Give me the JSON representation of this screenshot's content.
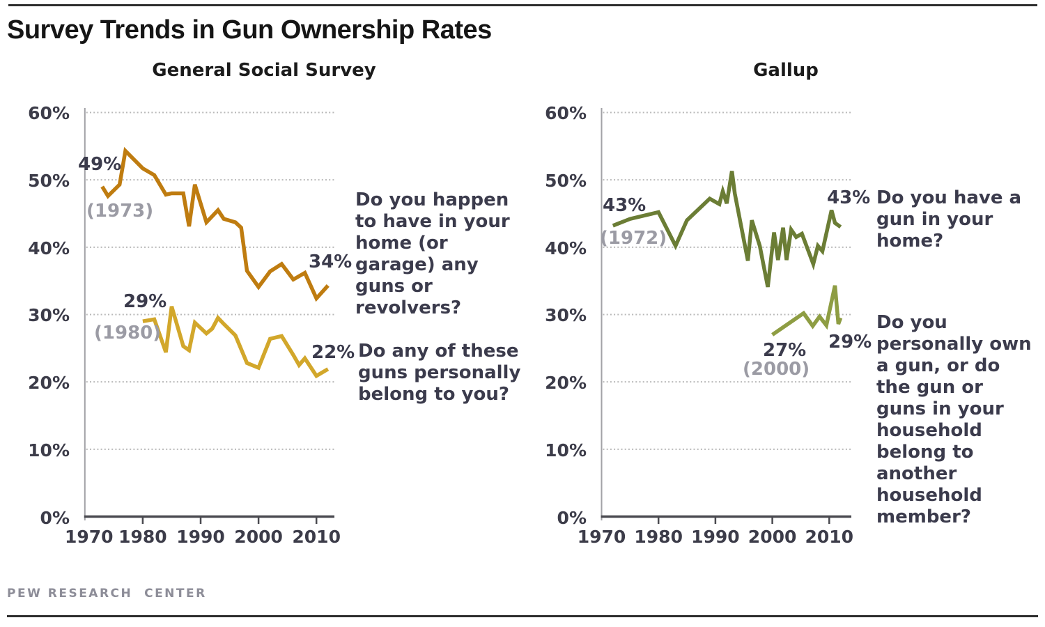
{
  "page": {
    "title": "Survey Trends in Gun Ownership Rates",
    "footer": "PEW RESEARCH  CENTER"
  },
  "chart_data": [
    {
      "type": "line",
      "title": "General Social Survey",
      "xlabel": "",
      "ylabel": "",
      "ylim": [
        0,
        60
      ],
      "xlim": [
        1970,
        2013
      ],
      "grid": "horizontal dotted",
      "legend_position": "none",
      "yticks": [
        "60%",
        "50%",
        "40%",
        "30%",
        "20%",
        "10%",
        "0%"
      ],
      "ytick_values": [
        60,
        50,
        40,
        30,
        20,
        10,
        0
      ],
      "xticks": [
        "1970",
        "1980",
        "1990",
        "2000",
        "2010"
      ],
      "xtick_values": [
        1970,
        1980,
        1990,
        2000,
        2010
      ],
      "series": [
        {
          "name": "Guns in home",
          "color": "#bf7c10",
          "question": "Do you happen\nto have in your\nhome (or\ngarage) any\nguns or\nrevolvers?",
          "labels": {
            "start_value": "49%",
            "start_year": "(1973)",
            "end_value": "34%"
          },
          "points": [
            [
              1973,
              49
            ],
            [
              1974,
              47.6
            ],
            [
              1976,
              49.3
            ],
            [
              1977,
              54.3
            ],
            [
              1980,
              51.7
            ],
            [
              1982,
              50.7
            ],
            [
              1984,
              47.8
            ],
            [
              1985,
              48
            ],
            [
              1987,
              48
            ],
            [
              1988,
              43.1
            ],
            [
              1989,
              49.3
            ],
            [
              1991,
              43.7
            ],
            [
              1993,
              45.5
            ],
            [
              1994,
              44.2
            ],
            [
              1996,
              43.7
            ],
            [
              1997,
              42.9
            ],
            [
              1998,
              36.5
            ],
            [
              2000,
              34.1
            ],
            [
              2002,
              36.4
            ],
            [
              2004,
              37.5
            ],
            [
              2006,
              35.2
            ],
            [
              2008,
              36.2
            ],
            [
              2010,
              32.4
            ],
            [
              2012,
              34.3
            ]
          ]
        },
        {
          "name": "Gun personally belongs to respondent",
          "color": "#d2a72b",
          "question": "Do any of these\nguns personally\nbelong to you?",
          "labels": {
            "start_value": "29%",
            "start_year": "(1980)",
            "end_value": "22%"
          },
          "points": [
            [
              1980,
              29
            ],
            [
              1982,
              29.3
            ],
            [
              1984,
              24.4
            ],
            [
              1985,
              31.2
            ],
            [
              1987,
              25.3
            ],
            [
              1988,
              24.7
            ],
            [
              1989,
              28.8
            ],
            [
              1991,
              27.2
            ],
            [
              1992,
              27.9
            ],
            [
              1993,
              29.5
            ],
            [
              1994,
              28.6
            ],
            [
              1996,
              26.9
            ],
            [
              1998,
              22.8
            ],
            [
              2000,
              22.1
            ],
            [
              2002,
              26.4
            ],
            [
              2004,
              26.8
            ],
            [
              2006,
              24
            ],
            [
              2007,
              22.5
            ],
            [
              2008,
              23.5
            ],
            [
              2010,
              20.9
            ],
            [
              2012,
              21.9
            ]
          ]
        }
      ]
    },
    {
      "type": "line",
      "title": "Gallup",
      "xlabel": "",
      "ylabel": "",
      "ylim": [
        0,
        60
      ],
      "xlim": [
        1970,
        2013
      ],
      "grid": "horizontal dotted",
      "legend_position": "none",
      "yticks": [
        "60%",
        "50%",
        "40%",
        "30%",
        "20%",
        "10%",
        "0%"
      ],
      "ytick_values": [
        60,
        50,
        40,
        30,
        20,
        10,
        0
      ],
      "xticks": [
        "1970",
        "1980",
        "1990",
        "2000",
        "2010"
      ],
      "xtick_values": [
        1970,
        1980,
        1990,
        2000,
        2010
      ],
      "series": [
        {
          "name": "Gun in home",
          "color": "#6b7d35",
          "question": "Do you have a\ngun in your\nhome?",
          "labels": {
            "start_value": "43%",
            "start_year": "(1972)",
            "end_value": "43%"
          },
          "points": [
            [
              1972,
              43.2
            ],
            [
              1975,
              44.2
            ],
            [
              1980,
              45.2
            ],
            [
              1983,
              40.2
            ],
            [
              1985,
              44
            ],
            [
              1989,
              47.2
            ],
            [
              1990.7,
              46.4
            ],
            [
              1991.3,
              48.3
            ],
            [
              1992,
              46.5
            ],
            [
              1992.9,
              51.3
            ],
            [
              1993.4,
              48
            ],
            [
              1995.7,
              38
            ],
            [
              1996.4,
              44
            ],
            [
              1997.8,
              40.2
            ],
            [
              1999.2,
              34.1
            ],
            [
              2000.3,
              42.2
            ],
            [
              2001,
              38.1
            ],
            [
              2001.9,
              42.9
            ],
            [
              2002.5,
              38.1
            ],
            [
              2003.3,
              42.6
            ],
            [
              2004.2,
              41.5
            ],
            [
              2005.2,
              42
            ],
            [
              2007.2,
              37.5
            ],
            [
              2008,
              40.2
            ],
            [
              2008.8,
              39.4
            ],
            [
              2010.4,
              45.5
            ],
            [
              2011,
              43.6
            ],
            [
              2012,
              43
            ]
          ]
        },
        {
          "name": "Personally own gun",
          "color": "#8e9d43",
          "question": "Do you\npersonally own\na gun, or do\nthe gun or\nguns in your\nhousehold\nbelong to\nanother\nhousehold\nmember?",
          "labels": {
            "start_value": "27%",
            "start_year": "(2000)",
            "end_value": "29%"
          },
          "points": [
            [
              2000,
              27
            ],
            [
              2005.5,
              30.2
            ],
            [
              2007.1,
              28.3
            ],
            [
              2008.3,
              29.7
            ],
            [
              2009.5,
              28.4
            ],
            [
              2011,
              34.3
            ],
            [
              2011.6,
              28.6
            ],
            [
              2012,
              29.5
            ]
          ]
        }
      ]
    }
  ]
}
